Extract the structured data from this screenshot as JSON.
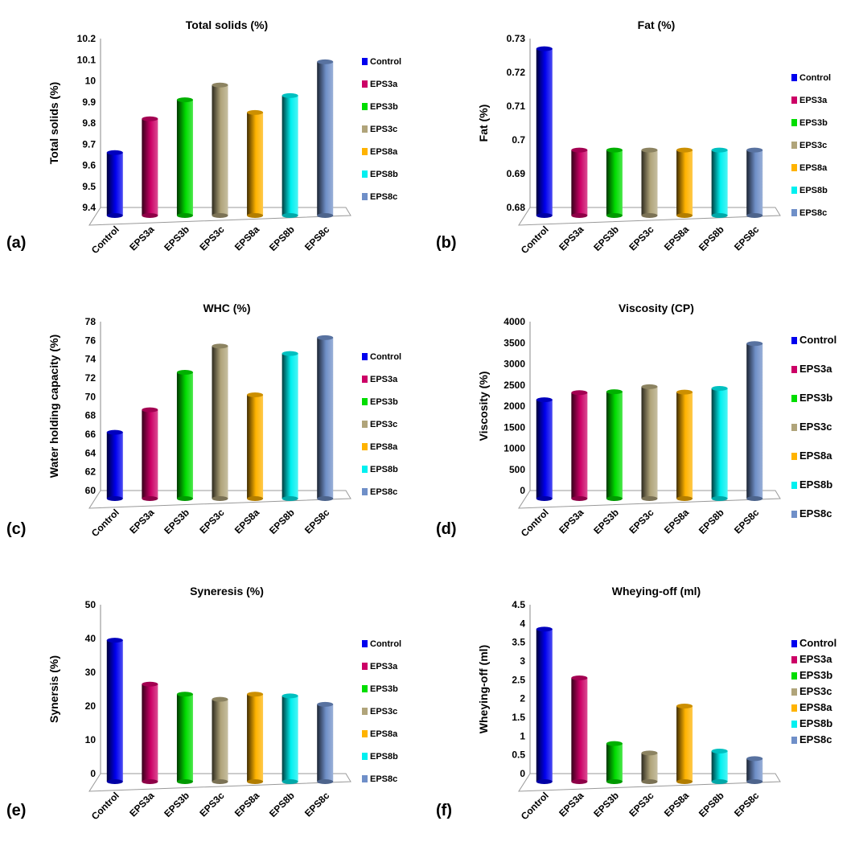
{
  "categories": [
    "Control",
    "EPS3a",
    "EPS3b",
    "EPS3c",
    "EPS8a",
    "EPS8b",
    "EPS8c"
  ],
  "colors": [
    "#0000ee",
    "#cc0066",
    "#00dd00",
    "#b0a47a",
    "#ffb300",
    "#00f0f0",
    "#6f8fc8"
  ],
  "chart_data": [
    {
      "type": "bar",
      "panel": "(a)",
      "title": "Total solids (%)",
      "ylabel": "Total solids (%)",
      "ylim": [
        9.4,
        10.2
      ],
      "ticks": [
        9.4,
        9.5,
        9.6,
        9.7,
        9.8,
        9.9,
        10,
        10.1,
        10.2
      ],
      "legend": "right",
      "values": [
        9.66,
        9.82,
        9.91,
        9.98,
        9.85,
        9.93,
        10.09
      ]
    },
    {
      "type": "bar",
      "panel": "(b)",
      "title": "Fat (%)",
      "ylabel": "Fat (%)",
      "ylim": [
        0.68,
        0.73
      ],
      "ticks": [
        0.68,
        0.69,
        0.7,
        0.71,
        0.72,
        0.73
      ],
      "legend": "right",
      "values": [
        0.727,
        0.697,
        0.697,
        0.697,
        0.697,
        0.697,
        0.697
      ]
    },
    {
      "type": "bar",
      "panel": "(c)",
      "title": "WHC (%)",
      "ylabel": "Water holding capacity (%)",
      "ylim": [
        60,
        78
      ],
      "ticks": [
        60,
        62,
        64,
        66,
        68,
        70,
        72,
        74,
        76,
        78
      ],
      "legend": "right",
      "values": [
        66.2,
        68.6,
        72.6,
        75.4,
        70.2,
        74.6,
        76.3
      ]
    },
    {
      "type": "bar",
      "panel": "(d)",
      "title": "Viscosity (CP)",
      "ylabel": "Viscosity (%)",
      "ylim": [
        0,
        4000
      ],
      "ticks": [
        0,
        500,
        1000,
        1500,
        2000,
        2500,
        3000,
        3500,
        4000
      ],
      "legend": "right",
      "values": [
        2150,
        2320,
        2340,
        2460,
        2330,
        2420,
        3480
      ]
    },
    {
      "type": "bar",
      "panel": "(e)",
      "title": "Syneresis (%)",
      "ylabel": "Synersis (%)",
      "ylim": [
        0,
        50
      ],
      "ticks": [
        0,
        10,
        20,
        30,
        40,
        50
      ],
      "legend": "right",
      "values": [
        39.5,
        26.5,
        23.5,
        22,
        23.5,
        23,
        20.5
      ]
    },
    {
      "type": "bar",
      "panel": "(f)",
      "title": "Wheying-off (ml)",
      "ylabel": "Wheying-off (ml)",
      "ylim": [
        0,
        4.5
      ],
      "ticks": [
        0,
        0.5,
        1,
        1.5,
        2,
        2.5,
        3,
        3.5,
        4,
        4.5
      ],
      "legend": "right",
      "values": [
        3.85,
        2.55,
        0.8,
        0.55,
        1.8,
        0.6,
        0.4
      ]
    }
  ]
}
